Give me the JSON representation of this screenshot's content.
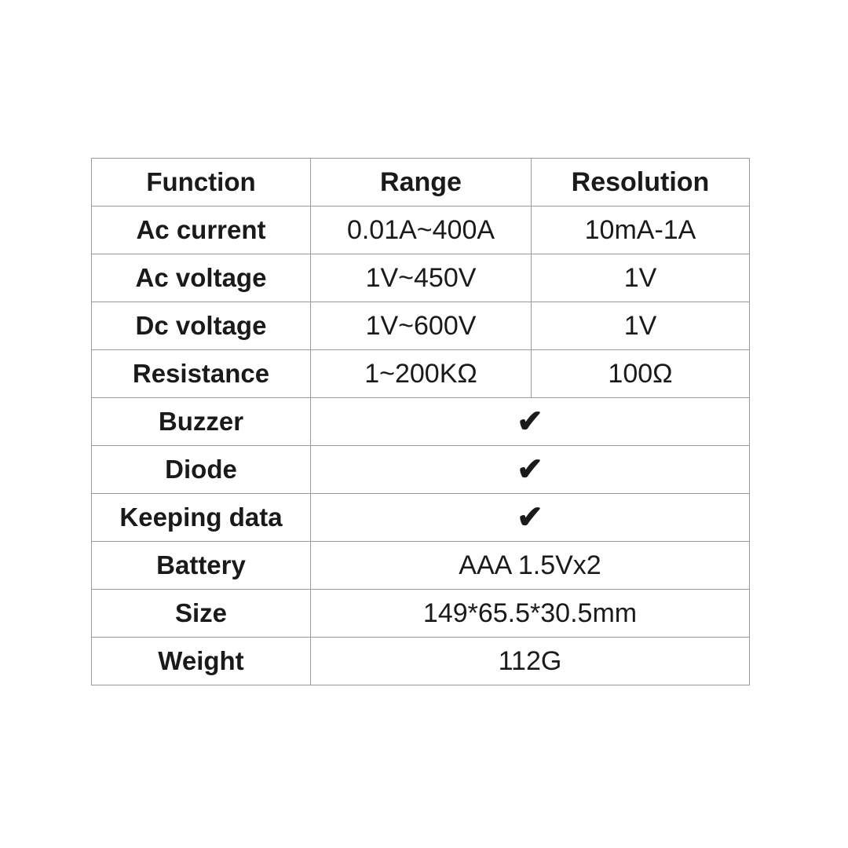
{
  "headers": [
    "Function",
    "Range",
    "Resolution"
  ],
  "rows3": [
    {
      "f": "Ac current",
      "r": "0.01A~400A",
      "res": "10mA-1A"
    },
    {
      "f": "Ac voltage",
      "r": "1V~450V",
      "res": "1V"
    },
    {
      "f": "Dc voltage",
      "r": "1V~600V",
      "res": "1V"
    },
    {
      "f": "Resistance",
      "r": "1~200KΩ",
      "res": "100Ω"
    }
  ],
  "rows2": [
    {
      "f": "Buzzer",
      "v": "✔"
    },
    {
      "f": "Diode",
      "v": "✔"
    },
    {
      "f": "Keeping data",
      "v": "✔"
    },
    {
      "f": "Battery",
      "v": "AAA 1.5Vx2"
    },
    {
      "f": "Size",
      "v": "149*65.5*30.5mm"
    },
    {
      "f": "Weight",
      "v": "112G"
    }
  ]
}
